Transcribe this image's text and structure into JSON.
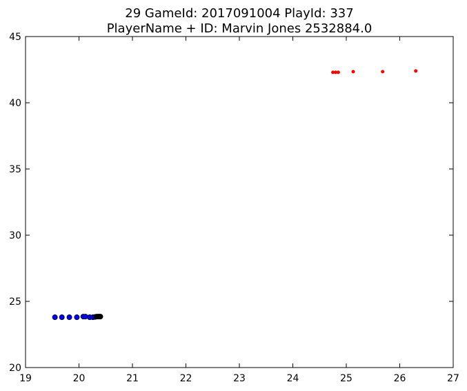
{
  "chart_data": {
    "type": "scatter",
    "title_line1": "29 GameId: 2017091004 PlayId: 337",
    "title_line2": "PlayerName + ID: Marvin Jones 2532884.0",
    "xlim": [
      19,
      27
    ],
    "ylim": [
      20,
      45
    ],
    "xticks": [
      "19",
      "20",
      "21",
      "22",
      "23",
      "24",
      "25",
      "26",
      "27"
    ],
    "yticks": [
      "20",
      "25",
      "30",
      "35",
      "40",
      "45"
    ],
    "grid": false,
    "series": [
      {
        "color": "#ff0000",
        "marker": "small-dot",
        "points": [
          [
            24.75,
            42.3
          ],
          [
            24.8,
            42.3
          ],
          [
            24.85,
            42.3
          ],
          [
            25.13,
            42.35
          ],
          [
            25.68,
            42.35
          ],
          [
            26.3,
            42.4
          ]
        ]
      },
      {
        "color": "#0000ff",
        "marker": "circle",
        "points": [
          [
            19.55,
            23.8
          ],
          [
            19.68,
            23.8
          ],
          [
            19.82,
            23.8
          ],
          [
            19.96,
            23.8
          ],
          [
            20.08,
            23.85
          ],
          [
            20.12,
            23.85
          ],
          [
            20.2,
            23.8
          ],
          [
            20.26,
            23.8
          ],
          [
            20.3,
            23.82
          ]
        ]
      },
      {
        "color": "#000000",
        "marker": "circle",
        "points": [
          [
            20.33,
            23.85
          ],
          [
            20.36,
            23.85
          ],
          [
            20.38,
            23.85
          ],
          [
            20.4,
            23.85
          ]
        ]
      }
    ]
  }
}
